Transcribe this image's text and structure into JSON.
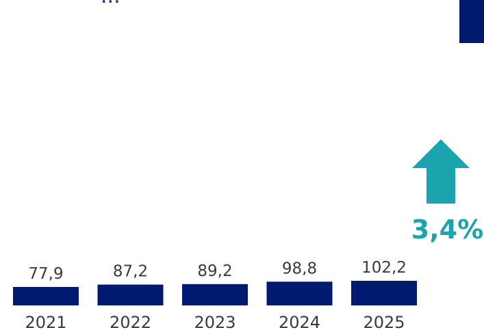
{
  "colors": {
    "bar": "#001a70",
    "arrow": "#1ba3ae",
    "text": "#3a3a3a",
    "accent_box": "#001a70"
  },
  "header": {
    "partial_text": "..."
  },
  "growth": {
    "label": "3,4%",
    "icon": "arrow-up-icon"
  },
  "chart_data": {
    "type": "bar",
    "categories": [
      "2021",
      "2022",
      "2023",
      "2024",
      "2025"
    ],
    "values": [
      77.9,
      87.2,
      89.2,
      98.8,
      102.2
    ],
    "value_labels": [
      "77,9",
      "87,2",
      "89,2",
      "98,8",
      "102,2"
    ],
    "title": "",
    "xlabel": "",
    "ylabel": ""
  }
}
